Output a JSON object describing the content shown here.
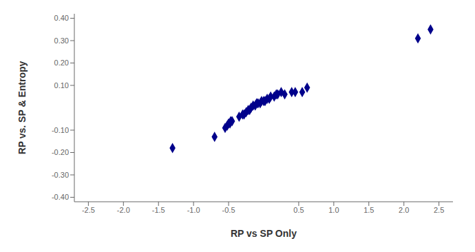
{
  "chart_data": {
    "type": "scatter",
    "x": [
      -1.3,
      -0.7,
      -0.55,
      -0.52,
      -0.5,
      -0.48,
      -0.47,
      -0.45,
      -0.35,
      -0.3,
      -0.28,
      -0.25,
      -0.22,
      -0.2,
      -0.18,
      -0.15,
      -0.12,
      -0.1,
      -0.08,
      -0.05,
      -0.03,
      0.0,
      0.02,
      0.05,
      0.08,
      0.1,
      0.15,
      0.18,
      0.2,
      0.25,
      0.3,
      0.4,
      0.45,
      0.55,
      0.62,
      2.2,
      2.38
    ],
    "values": [
      -0.18,
      -0.13,
      -0.09,
      -0.08,
      -0.07,
      -0.07,
      -0.06,
      -0.06,
      -0.04,
      -0.03,
      -0.03,
      -0.02,
      -0.01,
      -0.01,
      0.0,
      0.01,
      0.01,
      0.02,
      0.02,
      0.02,
      0.03,
      0.03,
      0.03,
      0.04,
      0.04,
      0.05,
      0.05,
      0.06,
      0.06,
      0.07,
      0.06,
      0.07,
      0.07,
      0.07,
      0.09,
      0.31,
      0.35
    ],
    "color": "#00008B",
    "marker": "diamond",
    "xlabel": "RP vs SP Only",
    "ylabel": "RP vs. SP & Entropy",
    "xlim": [
      -2.7,
      2.7
    ],
    "ylim": [
      -0.42,
      0.42
    ],
    "xticks": [
      -2.5,
      {
        "value": -2.0,
        "label": "-2.0"
      },
      -1.5,
      {
        "value": -1.0,
        "label": "-1.0"
      },
      -0.5,
      0.5,
      {
        "value": 1.0,
        "label": "1.0"
      },
      1.5,
      {
        "value": 2.0,
        "label": "2.0"
      },
      2.5
    ],
    "yticks": [
      {
        "value": -0.4,
        "label": "-0.40"
      },
      {
        "value": -0.3,
        "label": "-0.30"
      },
      {
        "value": -0.2,
        "label": "-0.20"
      },
      {
        "value": -0.1,
        "label": "-0.10"
      },
      {
        "value": 0.1,
        "label": "0.10"
      },
      {
        "value": 0.2,
        "label": "0.20"
      },
      {
        "value": 0.3,
        "label": "0.30"
      },
      {
        "value": 0.4,
        "label": "0.40"
      }
    ],
    "grid": false
  }
}
